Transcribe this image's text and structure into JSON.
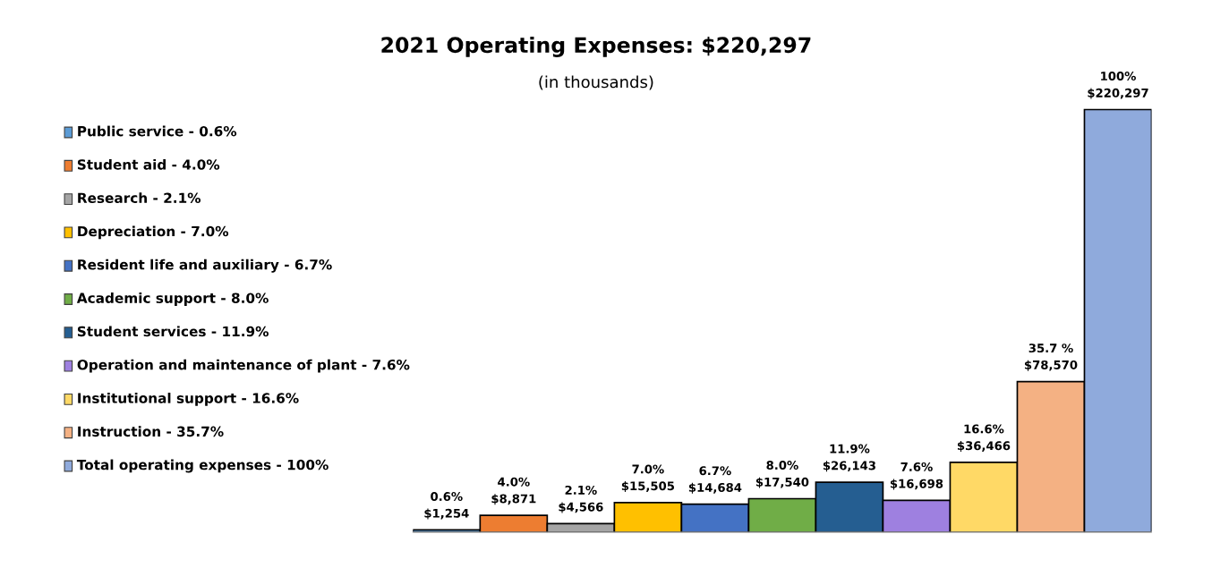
{
  "chart_data": {
    "type": "bar",
    "title": "2021 Operating Expenses: $220,297",
    "subtitle": "(in thousands)",
    "categories": [
      null,
      null,
      null,
      null,
      null,
      null,
      null,
      null,
      null,
      null,
      null
    ],
    "values": [
      1254,
      8871,
      4566,
      15505,
      14684,
      17540,
      26143,
      16698,
      36466,
      78570,
      220297
    ],
    "colors": [
      "#5b9bd5",
      "#ed7d31",
      "#a5a5a5",
      "#ffc000",
      "#4472c4",
      "#70ad47",
      "#255e91",
      "#9e80e0",
      "#ffd966",
      "#f4b183",
      "#8faadc"
    ],
    "value_labels": [
      "0.6%\n$1,254",
      "4.0%\n$8,871",
      "2.1%\n$4,566",
      "7.0%\n$15,505",
      "6.7%\n$14,684",
      "8.0%\n$17,540",
      "11.9%\n$26,143",
      "7.6%\n$16,698",
      "16.6%\n$36,466",
      "35.7 %\n$78,570",
      "100%\n$220,297"
    ],
    "annotations": [
      "Public service - 0.6%",
      "Student aid - 4.0%",
      "Research - 2.1%",
      "Depreciation - 7.0%",
      "Resident life and auxiliary - 6.7%",
      "Academic support - 8.0%",
      "Student services - 11.9%",
      "Operation and maintenance of plant - 7.6%",
      "Institutional support - 16.6%",
      "Instruction - 35.7%",
      "Total operating expenses - 100%"
    ]
  }
}
